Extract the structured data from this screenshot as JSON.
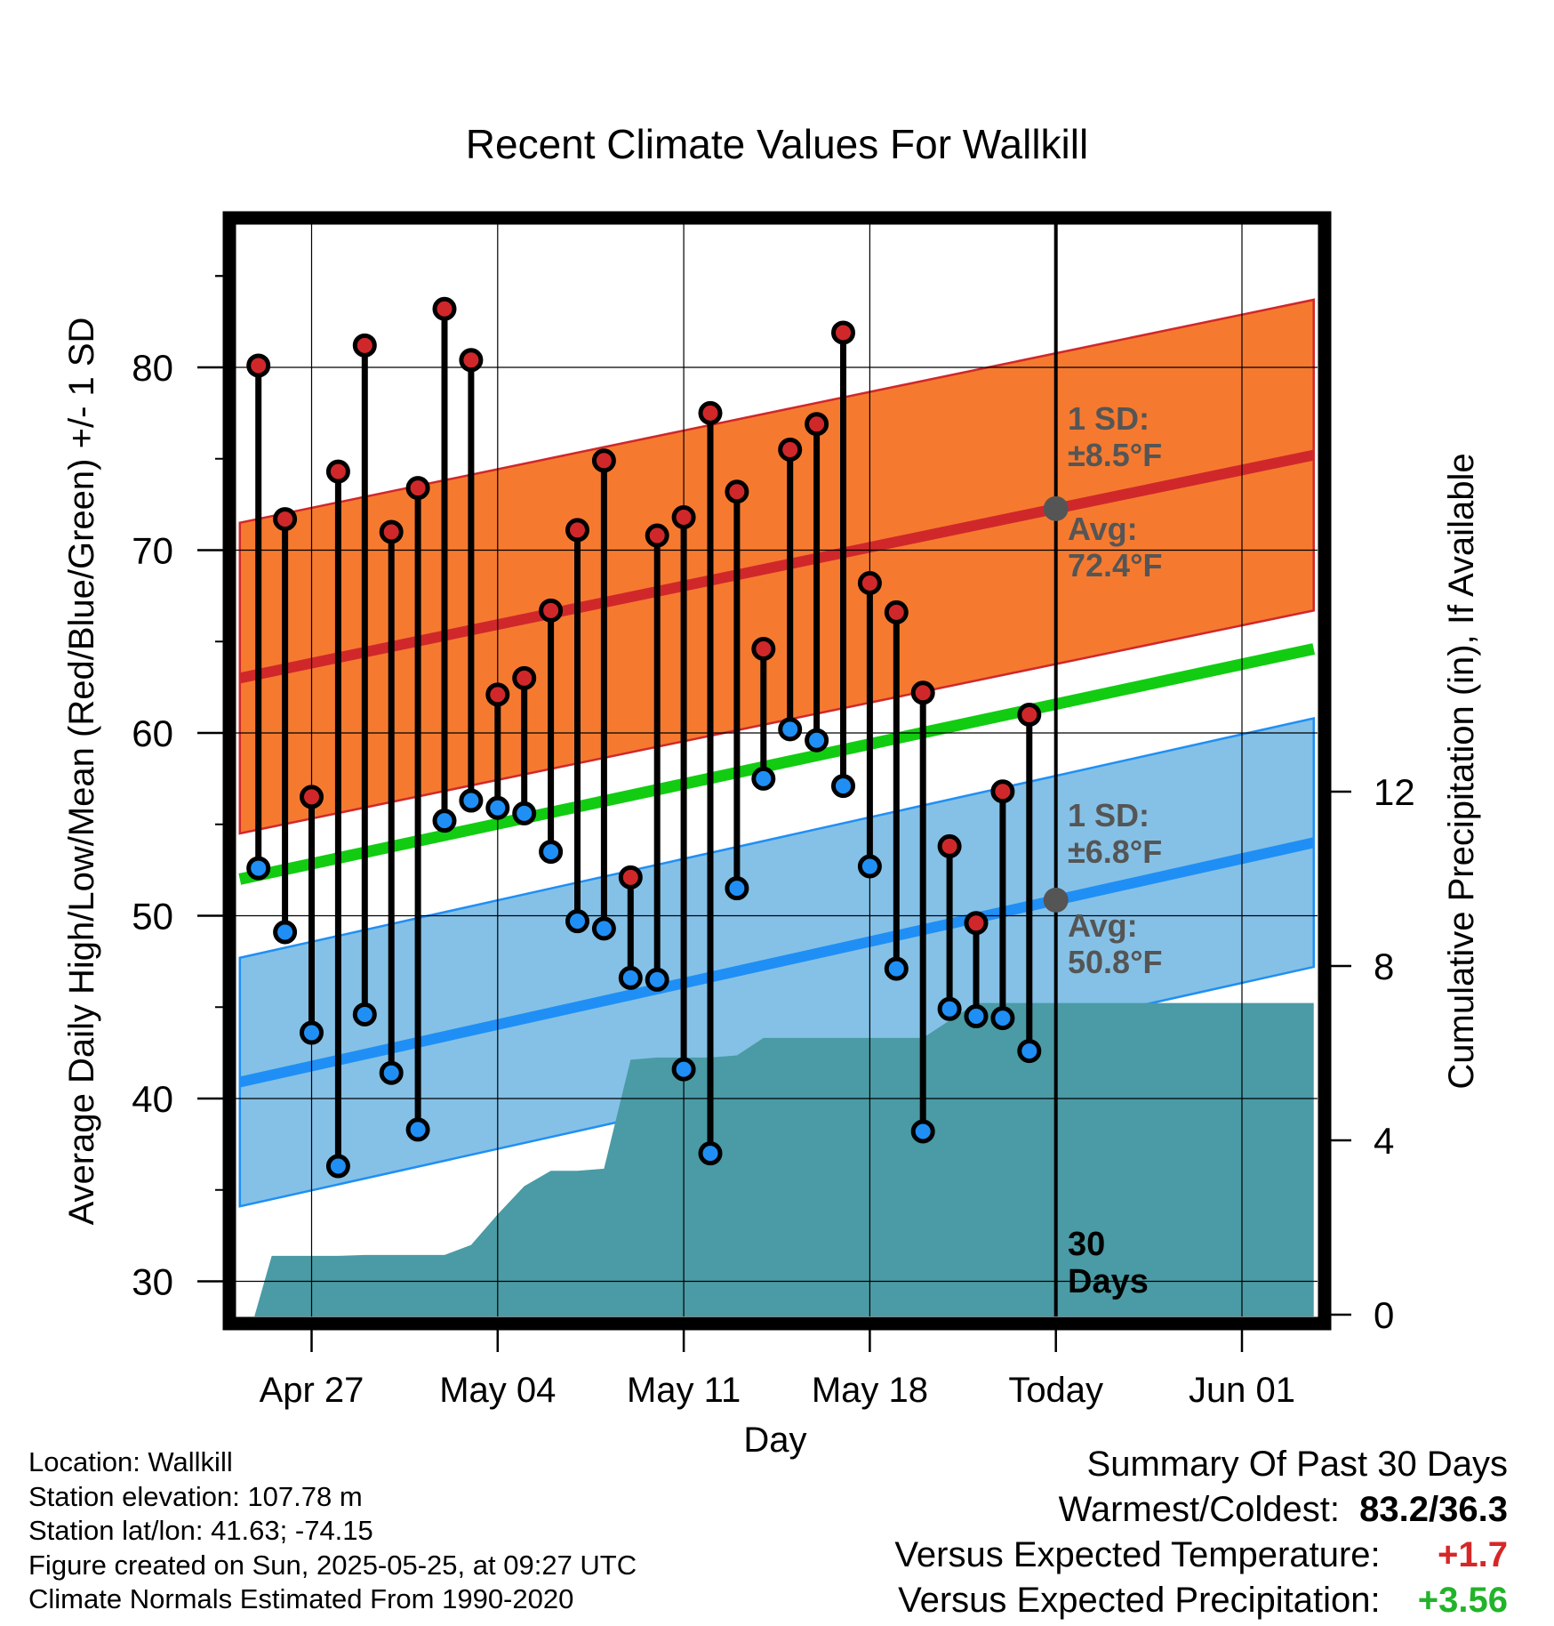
{
  "chart_data": {
    "type": "line",
    "title": "Recent Climate Values For Wallkill",
    "xlabel": "Day",
    "ylabel": "Average Daily High/Low/Mean (Red/Blue/Green) +/- 1 SD",
    "y2label": "Cumulative Precipitation (in), If Available",
    "ylim": [
      28.7,
      87.8
    ],
    "y2lim": [
      0,
      17.5
    ],
    "yticks": [
      "30",
      "40",
      "50",
      "60",
      "70",
      "80"
    ],
    "y2ticks": [
      "0",
      "4",
      "8",
      "12"
    ],
    "xticks": [
      "Apr 27",
      "May 04",
      "May 11",
      "May 18",
      "Today",
      "Jun 01"
    ],
    "dates": [
      "Apr 25",
      "Apr 26",
      "Apr 27",
      "Apr 28",
      "Apr 29",
      "Apr 30",
      "May 01",
      "May 02",
      "May 03",
      "May 04",
      "May 05",
      "May 06",
      "May 07",
      "May 08",
      "May 09",
      "May 10",
      "May 11",
      "May 12",
      "May 13",
      "May 14",
      "May 15",
      "May 16",
      "May 17",
      "May 18",
      "May 19",
      "May 20",
      "May 21",
      "May 22",
      "May 23",
      "May 24"
    ],
    "series": [
      {
        "name": "High",
        "values": [
          80.1,
          71.7,
          56.5,
          74.3,
          81.2,
          71.0,
          73.4,
          83.2,
          80.4,
          62.1,
          63.0,
          66.7,
          71.1,
          74.9,
          52.1,
          70.8,
          71.8,
          77.5,
          73.2,
          64.6,
          75.5,
          76.9,
          81.9,
          68.2,
          66.6,
          62.2,
          53.8,
          49.6,
          56.8,
          61.0
        ]
      },
      {
        "name": "Low",
        "values": [
          52.6,
          49.1,
          43.6,
          36.3,
          44.6,
          41.4,
          38.3,
          55.2,
          56.3,
          55.9,
          55.6,
          53.5,
          49.7,
          49.3,
          46.6,
          46.5,
          41.6,
          37.0,
          51.5,
          57.5,
          60.2,
          59.6,
          57.1,
          52.7,
          47.1,
          38.2,
          44.9,
          44.5,
          44.4,
          42.6
        ]
      },
      {
        "name": "Cumulative Precipitation",
        "values": [
          0.0,
          1.35,
          1.35,
          1.35,
          1.37,
          1.37,
          1.37,
          1.37,
          1.6,
          2.3,
          2.95,
          3.3,
          3.3,
          3.35,
          5.85,
          5.9,
          5.9,
          5.9,
          5.95,
          6.35,
          6.35,
          6.35,
          6.35,
          6.35,
          6.35,
          6.35,
          6.75,
          7.15,
          7.15,
          7.15
        ]
      }
    ],
    "normals": {
      "high_avg_start": 63.0,
      "high_avg_end": 75.2,
      "high_sd": 8.5,
      "low_avg_start": 40.9,
      "low_avg_end": 54.0,
      "low_sd": 6.8,
      "mean_start": 52.0,
      "mean_end": 64.6,
      "x_start": -0.7,
      "x_end": 39.7
    },
    "precip_projection": 7.15,
    "today_index": 30,
    "annotations": {
      "high_sd": "1 SD:",
      "high_sd_value": "±8.5°F",
      "high_avg": "Avg:",
      "high_avg_value": "72.4°F",
      "low_sd": "1 SD:",
      "low_sd_value": "±6.8°F",
      "low_avg": "Avg:",
      "low_avg_value": "50.8°F",
      "days_count": "30",
      "days_label": "Days"
    },
    "colors": {
      "high_band": "#f57a30",
      "high_line": "#d0282a",
      "low_band": "#85c1e6",
      "low_line": "#1f8ff5",
      "mean_line": "#12cc12",
      "precip": "#4a9ba5",
      "annotation": "#555555"
    }
  },
  "footer": {
    "location": "Location: Wallkill",
    "elevation": "Station elevation: 107.78 m",
    "latlon": "Station lat/lon: 41.63; -74.15",
    "created": "Figure created on Sun, 2025-05-25, at 09:27 UTC",
    "normals": "Climate Normals Estimated From 1990-2020"
  },
  "summary": {
    "title": "Summary Of Past 30 Days",
    "warm_label": "Warmest/Coldest:",
    "warm_value": "83.2/36.3",
    "temp_label": "Versus Expected Temperature:",
    "temp_value": "+1.7",
    "precip_label": "Versus Expected Precipitation:",
    "precip_value": "+3.56"
  }
}
